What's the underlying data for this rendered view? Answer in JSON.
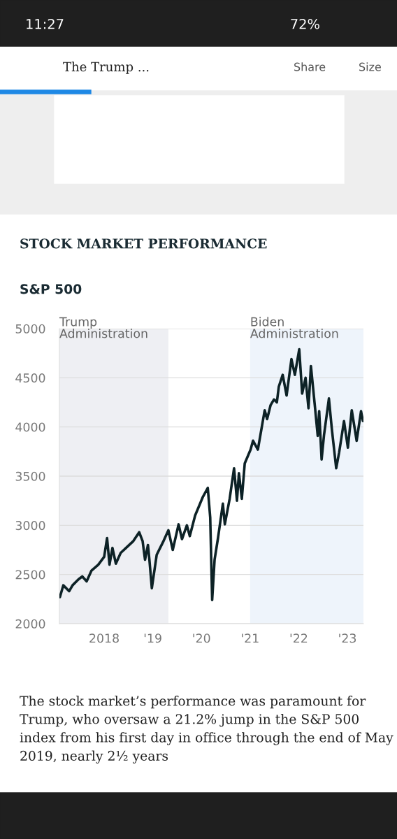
{
  "chart_data": {
    "type": "line",
    "title": "STOCK MARKET PERFORMANCE",
    "subtitle": "S&P 500",
    "x": [
      2017.09,
      2017.16,
      2017.28,
      2017.35,
      2017.47,
      2017.55,
      2017.64,
      2017.74,
      2017.88,
      2018.0,
      2018.06,
      2018.11,
      2018.17,
      2018.24,
      2018.34,
      2018.45,
      2018.6,
      2018.72,
      2018.79,
      2018.84,
      2018.9,
      2018.93,
      2018.98,
      2019.08,
      2019.22,
      2019.32,
      2019.41,
      2019.53,
      2019.6,
      2019.7,
      2019.76,
      2019.87,
      2020.03,
      2020.13,
      2020.18,
      2020.22,
      2020.27,
      2020.34,
      2020.44,
      2020.48,
      2020.58,
      2020.67,
      2020.73,
      2020.77,
      2020.83,
      2020.89,
      2021.01,
      2021.06,
      2021.16,
      2021.23,
      2021.3,
      2021.35,
      2021.42,
      2021.49,
      2021.55,
      2021.59,
      2021.67,
      2021.75,
      2021.85,
      2021.92,
      2022.01,
      2022.07,
      2022.14,
      2022.2,
      2022.25,
      2022.33,
      2022.39,
      2022.42,
      2022.47,
      2022.52,
      2022.62,
      2022.68,
      2022.77,
      2022.83,
      2022.93,
      2023.01,
      2023.09,
      2023.19,
      2023.28,
      2023.32
    ],
    "series": [
      {
        "color": "#0d2226",
        "values": [
          2270,
          2390,
          2330,
          2390,
          2450,
          2480,
          2430,
          2540,
          2600,
          2680,
          2870,
          2600,
          2770,
          2610,
          2720,
          2770,
          2840,
          2930,
          2840,
          2650,
          2800,
          2650,
          2360,
          2700,
          2840,
          2950,
          2750,
          3010,
          2860,
          3000,
          2890,
          3100,
          3290,
          3380,
          3080,
          2240,
          2650,
          2870,
          3220,
          3010,
          3270,
          3580,
          3250,
          3530,
          3270,
          3630,
          3770,
          3860,
          3770,
          3970,
          4170,
          4080,
          4220,
          4280,
          4250,
          4410,
          4530,
          4320,
          4690,
          4530,
          4790,
          4340,
          4500,
          4190,
          4620,
          4220,
          3910,
          4160,
          3670,
          3920,
          4290,
          3980,
          3580,
          3740,
          4060,
          3790,
          4170,
          3860,
          4160,
          4060
        ]
      }
    ],
    "xlim": [
      2017.08,
      2023.33
    ],
    "xticks": [
      {
        "value": 2018,
        "label": "2018"
      },
      {
        "value": 2019,
        "label": "'19"
      },
      {
        "value": 2020,
        "label": "'20"
      },
      {
        "value": 2021,
        "label": "'21"
      },
      {
        "value": 2022,
        "label": "'22"
      },
      {
        "value": 2023,
        "label": "'23"
      }
    ],
    "ylim": [
      2000,
      5000
    ],
    "yticks": [
      2000,
      2500,
      3000,
      3500,
      4000,
      4500,
      5000
    ],
    "grid": "y",
    "bands": [
      {
        "axis": "x",
        "from": 2017.08,
        "to": 2019.32,
        "label": "Trump\nAdministration",
        "color": "#eeeff3"
      },
      {
        "axis": "x",
        "from": 2021.0,
        "to": 2023.33,
        "label": "Biden\nAdministration",
        "color": "#eef4fb"
      }
    ],
    "annotations": [
      "11:27",
      "72%",
      "The Trump ...",
      "Share",
      "Size",
      "The stock market’s performance was paramount for Trump, who oversaw a 21.2% jump in the S&P 500 index from his first day in office through the end of May 2019, nearly 2½ years"
    ]
  }
}
